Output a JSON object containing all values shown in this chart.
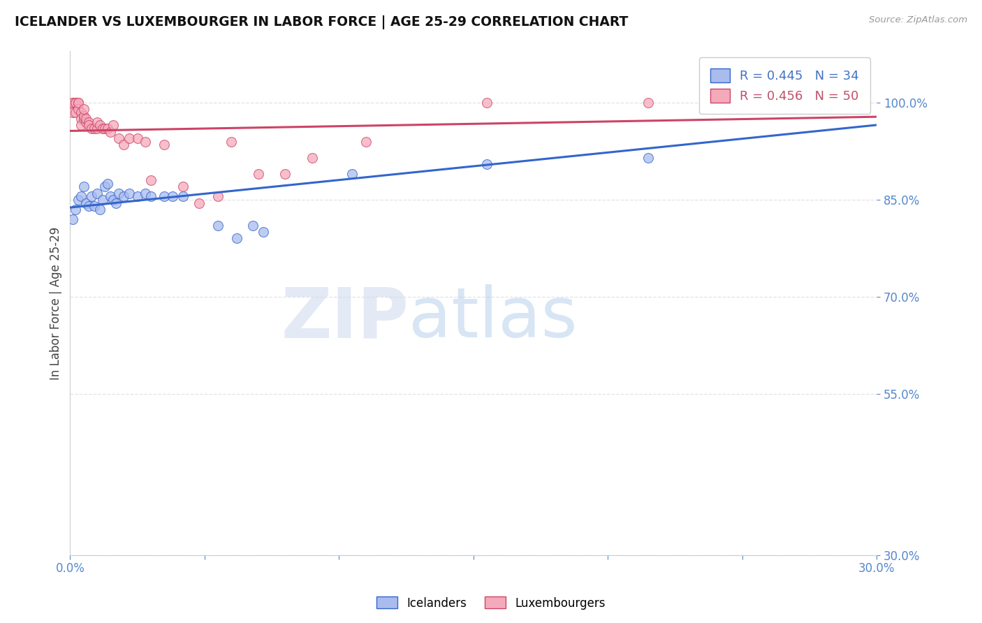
{
  "title": "ICELANDER VS LUXEMBOURGER IN LABOR FORCE | AGE 25-29 CORRELATION CHART",
  "source_text": "Source: ZipAtlas.com",
  "ylabel": "In Labor Force | Age 25-29",
  "legend_labels": [
    "Icelanders",
    "Luxembourgers"
  ],
  "legend_r_n": [
    {
      "r": 0.445,
      "n": 34,
      "color": "#4472c4"
    },
    {
      "r": 0.456,
      "n": 50,
      "color": "#c0506a"
    }
  ],
  "xlim": [
    0.0,
    0.3
  ],
  "ylim": [
    0.3,
    1.08
  ],
  "yticks": [
    0.3,
    0.55,
    0.7,
    0.85,
    1.0
  ],
  "ytick_labels": [
    "30.0%",
    "55.0%",
    "70.0%",
    "85.0%",
    "100.0%"
  ],
  "xticks": [
    0.0,
    0.05,
    0.1,
    0.15,
    0.2,
    0.25,
    0.3
  ],
  "xtick_labels": [
    "0.0%",
    "",
    "",
    "",
    "",
    "",
    "30.0%"
  ],
  "tick_color": "#5588cc",
  "grid_color": "#dddddd",
  "background_color": "#ffffff",
  "icelanders_x": [
    0.001,
    0.002,
    0.003,
    0.004,
    0.005,
    0.006,
    0.007,
    0.008,
    0.009,
    0.01,
    0.011,
    0.012,
    0.013,
    0.014,
    0.015,
    0.016,
    0.017,
    0.018,
    0.02,
    0.022,
    0.025,
    0.028,
    0.03,
    0.035,
    0.038,
    0.042,
    0.055,
    0.062,
    0.068,
    0.072,
    0.105,
    0.155,
    0.215,
    0.27
  ],
  "icelanders_y": [
    0.82,
    0.835,
    0.85,
    0.855,
    0.87,
    0.845,
    0.84,
    0.855,
    0.84,
    0.86,
    0.835,
    0.85,
    0.87,
    0.875,
    0.855,
    0.85,
    0.845,
    0.86,
    0.855,
    0.86,
    0.855,
    0.86,
    0.855,
    0.855,
    0.855,
    0.855,
    0.81,
    0.79,
    0.81,
    0.8,
    0.89,
    0.905,
    0.915,
    1.01
  ],
  "luxembourgers_x": [
    0.001,
    0.001,
    0.001,
    0.002,
    0.002,
    0.002,
    0.003,
    0.003,
    0.003,
    0.004,
    0.004,
    0.004,
    0.005,
    0.005,
    0.005,
    0.006,
    0.006,
    0.007,
    0.007,
    0.008,
    0.009,
    0.01,
    0.01,
    0.011,
    0.012,
    0.013,
    0.014,
    0.015,
    0.016,
    0.018,
    0.02,
    0.022,
    0.025,
    0.028,
    0.03,
    0.035,
    0.042,
    0.048,
    0.055,
    0.06,
    0.07,
    0.08,
    0.09,
    0.11,
    0.155,
    0.215,
    0.26,
    0.28,
    0.29,
    0.295
  ],
  "luxembourgers_y": [
    1.0,
    1.0,
    0.985,
    1.0,
    1.0,
    0.985,
    1.0,
    0.99,
    1.0,
    0.985,
    0.975,
    0.965,
    0.975,
    0.98,
    0.99,
    0.97,
    0.975,
    0.97,
    0.965,
    0.96,
    0.96,
    0.96,
    0.97,
    0.965,
    0.96,
    0.96,
    0.96,
    0.955,
    0.965,
    0.945,
    0.935,
    0.945,
    0.945,
    0.94,
    0.88,
    0.935,
    0.87,
    0.845,
    0.855,
    0.94,
    0.89,
    0.89,
    0.915,
    0.94,
    1.0,
    1.0,
    1.0,
    1.0,
    1.0,
    1.0
  ],
  "ice_dot_color": "#aabbee",
  "lux_dot_color": "#f5aabc",
  "ice_line_color": "#3366cc",
  "lux_line_color": "#cc4466",
  "dot_size": 100,
  "dot_alpha": 0.75,
  "watermark_zip": "ZIP",
  "watermark_atlas": "atlas",
  "watermark_color_zip": "#ccd8ee",
  "watermark_color_atlas": "#ccd8ee",
  "watermark_alpha": 0.55
}
